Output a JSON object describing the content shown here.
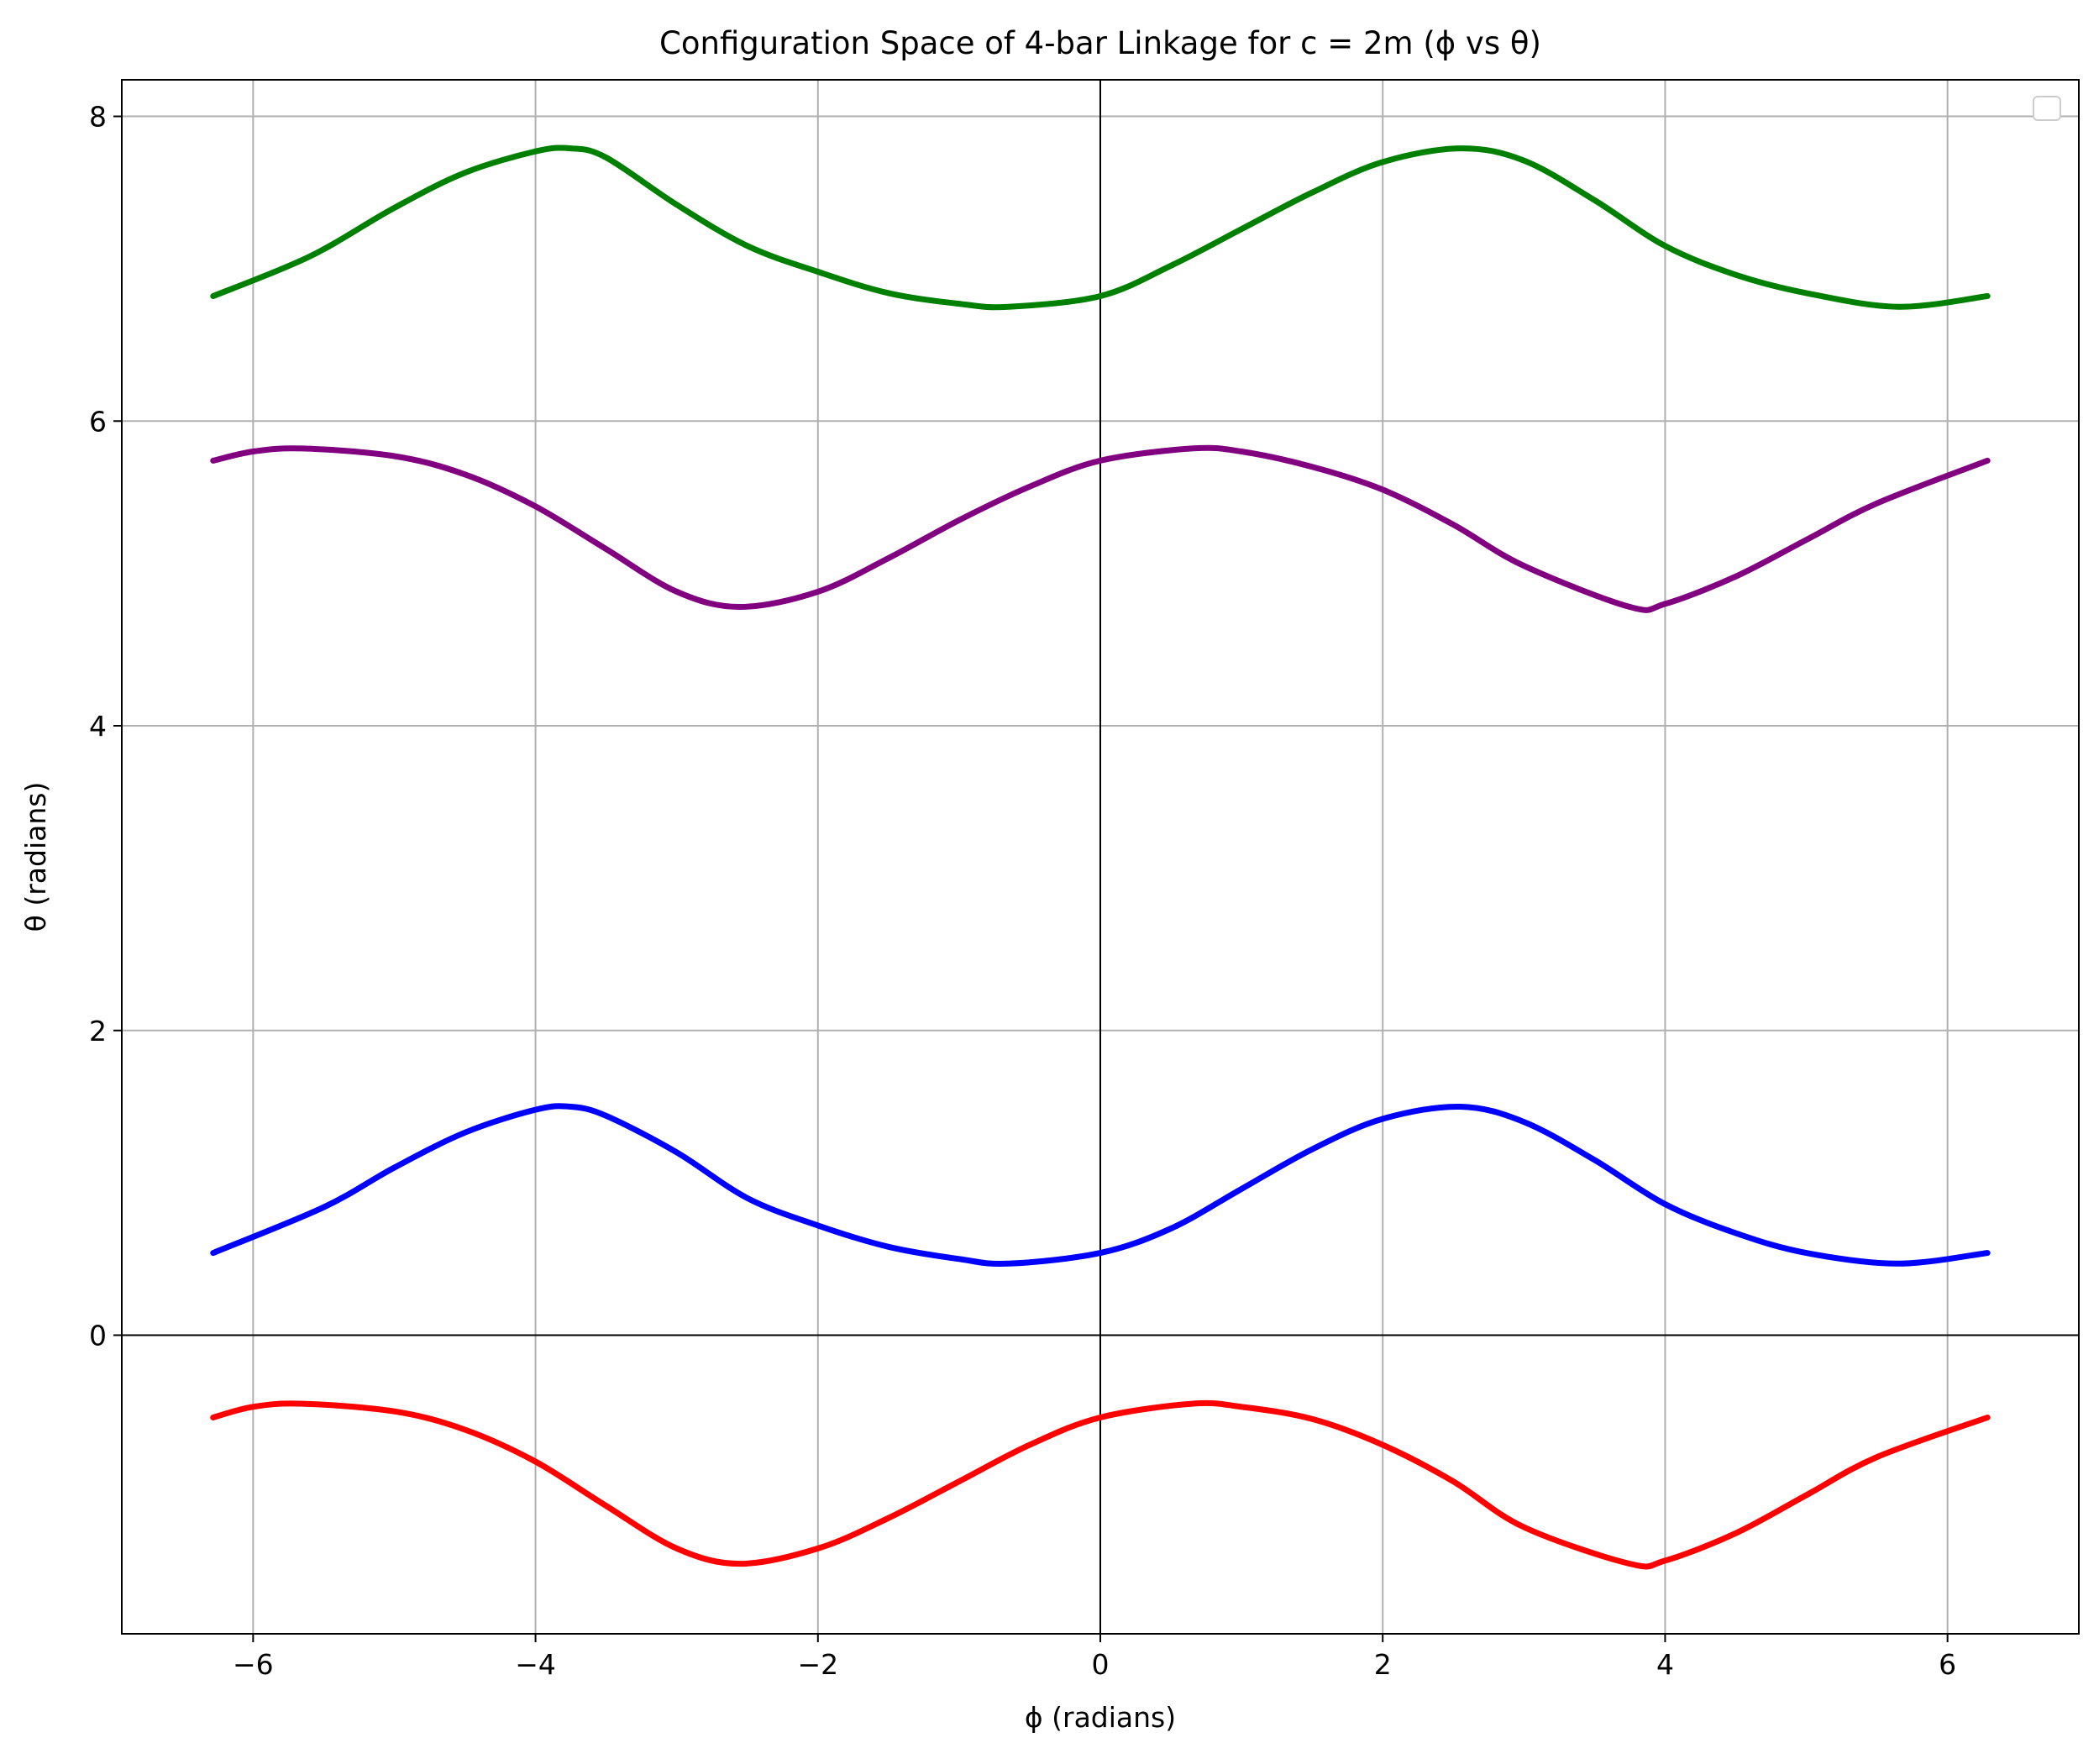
{
  "chart_data": {
    "type": "line",
    "title": "Configuration Space of 4-bar Linkage for c = 2m (ϕ vs θ)",
    "xlabel": "ϕ (radians)",
    "ylabel": "θ (radians)",
    "xlim": [
      -6.93,
      6.93
    ],
    "ylim": [
      -1.96,
      8.24
    ],
    "x_range": [
      -6.283,
      6.283
    ],
    "grid": true,
    "legend": "top-right (empty)",
    "zero_lines": true,
    "xticks": [
      -6,
      -4,
      -2,
      0,
      2,
      4,
      6
    ],
    "xtick_labels": [
      "−6",
      "−4",
      "−2",
      "0",
      "2",
      "4",
      "6"
    ],
    "yticks": [
      0,
      2,
      4,
      6,
      8
    ],
    "ytick_labels": [
      "0",
      "2",
      "4",
      "6",
      "8"
    ],
    "series": [
      {
        "color": "#008000",
        "x": [
          -6.283,
          -5.6,
          -5.0,
          -4.5,
          -4.0,
          -3.75,
          -3.5,
          -3.0,
          -2.5,
          -2.0,
          -1.5,
          -1.0,
          -0.65,
          0.0,
          0.5,
          1.0,
          1.5,
          2.0,
          2.55,
          3.0,
          3.5,
          4.0,
          4.5,
          5.0,
          5.65,
          6.283
        ],
        "y": [
          6.82,
          7.08,
          7.4,
          7.63,
          7.77,
          7.79,
          7.73,
          7.42,
          7.15,
          6.98,
          6.84,
          6.77,
          6.75,
          6.82,
          7.02,
          7.26,
          7.5,
          7.7,
          7.79,
          7.71,
          7.45,
          7.15,
          6.96,
          6.84,
          6.75,
          6.82
        ]
      },
      {
        "color": "#800080",
        "x": [
          -6.283,
          -6.0,
          -5.65,
          -5.0,
          -4.5,
          -4.0,
          -3.5,
          -3.0,
          -2.55,
          -2.0,
          -1.5,
          -1.0,
          -0.5,
          0.0,
          0.65,
          1.0,
          1.5,
          2.0,
          2.5,
          3.0,
          3.75,
          4.0,
          4.5,
          5.0,
          5.5,
          6.283
        ],
        "y": [
          5.74,
          5.8,
          5.82,
          5.77,
          5.65,
          5.44,
          5.16,
          4.88,
          4.78,
          4.88,
          5.1,
          5.35,
          5.57,
          5.74,
          5.82,
          5.8,
          5.7,
          5.55,
          5.32,
          5.05,
          4.78,
          4.8,
          4.98,
          5.22,
          5.46,
          5.74
        ]
      },
      {
        "color": "#0000ff",
        "x": [
          -6.283,
          -5.5,
          -5.0,
          -4.5,
          -4.0,
          -3.75,
          -3.5,
          -3.0,
          -2.5,
          -2.0,
          -1.5,
          -1.0,
          -0.65,
          0.0,
          0.5,
          1.0,
          1.5,
          2.0,
          2.55,
          3.0,
          3.5,
          4.0,
          4.5,
          5.0,
          5.65,
          6.283
        ],
        "y": [
          0.54,
          0.84,
          1.1,
          1.33,
          1.48,
          1.5,
          1.44,
          1.2,
          0.9,
          0.72,
          0.58,
          0.5,
          0.47,
          0.54,
          0.7,
          0.96,
          1.22,
          1.42,
          1.5,
          1.4,
          1.15,
          0.86,
          0.67,
          0.54,
          0.47,
          0.54
        ]
      },
      {
        "color": "#ff0000",
        "x": [
          -6.283,
          -6.0,
          -5.65,
          -5.0,
          -4.5,
          -4.0,
          -3.5,
          -3.0,
          -2.55,
          -2.0,
          -1.5,
          -1.0,
          -0.5,
          0.0,
          0.65,
          1.0,
          1.5,
          2.0,
          2.5,
          3.0,
          3.75,
          4.0,
          4.5,
          5.0,
          5.5,
          6.283
        ],
        "y": [
          -0.54,
          -0.47,
          -0.45,
          -0.5,
          -0.62,
          -0.83,
          -1.12,
          -1.4,
          -1.5,
          -1.4,
          -1.2,
          -0.96,
          -0.72,
          -0.54,
          -0.45,
          -0.47,
          -0.55,
          -0.72,
          -0.96,
          -1.26,
          -1.5,
          -1.48,
          -1.3,
          -1.05,
          -0.8,
          -0.54
        ]
      }
    ]
  }
}
